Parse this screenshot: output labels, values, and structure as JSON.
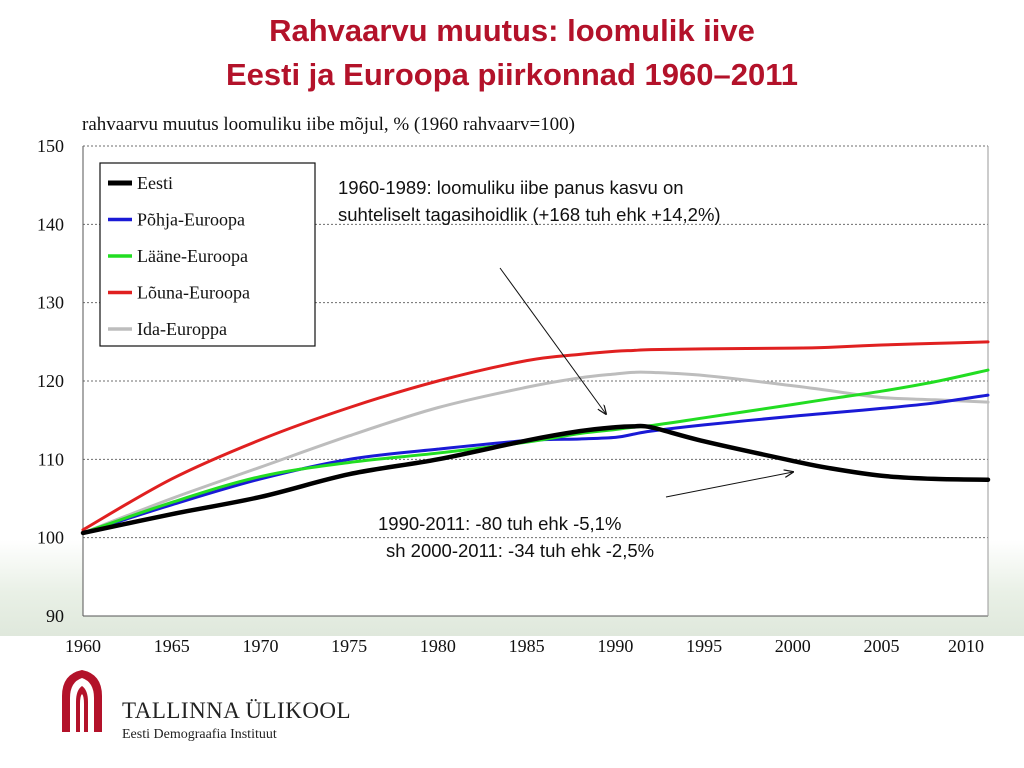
{
  "slide": {
    "title_line1": "Rahvaarvu muutus: loomulik iive",
    "title_line2": "Eesti ja Euroopa piirkonnad  1960–2011"
  },
  "annotations": {
    "top_line1": "1960-1989: loomuliku iibe panus kasvu on",
    "top_line2": "suhteliselt tagasihoidlik (+168 tuh ehk +14,2%)",
    "bottom_line1": "1990-2011:  -80 tuh ehk -5,1%",
    "bottom_line2": "sh 2000-2011: -34 tuh ehk -2,5%"
  },
  "logo": {
    "name": "TALLINNA ÜLIKOOL",
    "institute": "Eesti Demograafia Instituut"
  },
  "colors": {
    "title": "#b3122a",
    "grid": "#6e6e6e"
  },
  "chart_data": {
    "type": "line",
    "title": "rahvaarvu muutus loomuliku iibe mõjul, % (1960 rahvaarv=100)",
    "xlabel": "",
    "ylabel": "",
    "xlim": [
      1960,
      2011
    ],
    "ylim": [
      90,
      150
    ],
    "x_ticks": [
      1960,
      1965,
      1970,
      1975,
      1980,
      1985,
      1990,
      1995,
      2000,
      2005,
      2010
    ],
    "y_ticks": [
      90,
      100,
      110,
      120,
      130,
      140,
      150
    ],
    "grid": "horizontal dotted",
    "legend_position": "top-left",
    "x": [
      1960,
      1965,
      1970,
      1975,
      1980,
      1985,
      1988,
      1990,
      1991,
      1992,
      1995,
      2000,
      2002,
      2005,
      2008,
      2011
    ],
    "series": [
      {
        "name": "Eesti",
        "color": "#000000",
        "values": [
          100.6,
          103.0,
          105.2,
          108.1,
          110.0,
          112.4,
          113.6,
          114.1,
          114.2,
          114.1,
          112.3,
          109.8,
          108.9,
          107.9,
          107.5,
          107.4
        ]
      },
      {
        "name": "Põhja-Euroopa",
        "color": "#1a1ad6",
        "values": [
          100.6,
          104.2,
          107.5,
          110.0,
          111.3,
          112.4,
          112.6,
          112.8,
          113.2,
          113.6,
          114.4,
          115.5,
          115.9,
          116.5,
          117.2,
          118.2
        ]
      },
      {
        "name": "Lääne-Euroopa",
        "color": "#22dd22",
        "values": [
          100.6,
          104.5,
          107.8,
          109.6,
          110.8,
          112.2,
          113.3,
          113.8,
          114.1,
          114.3,
          115.3,
          117.0,
          117.7,
          118.7,
          119.9,
          121.4
        ]
      },
      {
        "name": "Lõuna-Euroopa",
        "color": "#e02020",
        "values": [
          101.0,
          107.5,
          112.5,
          116.6,
          120.0,
          122.6,
          123.4,
          123.8,
          123.9,
          124.0,
          124.1,
          124.2,
          124.3,
          124.6,
          124.8,
          125.0
        ]
      },
      {
        "name": "Ida-Europpa",
        "color": "#bdbdbd",
        "values": [
          100.6,
          105.0,
          109.0,
          113.0,
          116.6,
          119.2,
          120.4,
          120.9,
          121.1,
          121.1,
          120.7,
          119.4,
          118.8,
          117.9,
          117.6,
          117.3
        ]
      }
    ]
  }
}
